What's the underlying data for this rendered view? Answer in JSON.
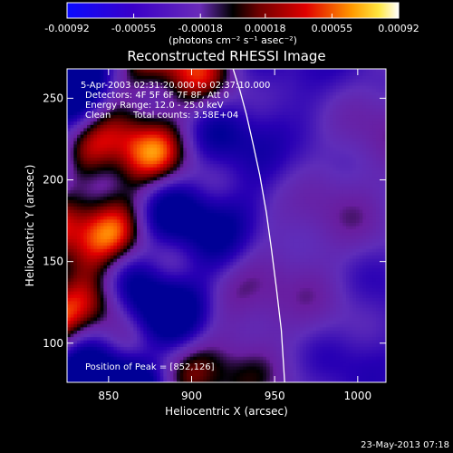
{
  "chart_data": {
    "type": "heatmap",
    "title": "Reconstructed RHESSI Image",
    "xlabel": "Heliocentric X (arcsec)",
    "ylabel": "Heliocentric Y (arcsec)",
    "xlim": [
      825,
      1017
    ],
    "ylim": [
      76,
      268
    ],
    "x_ticks": [
      850,
      900,
      950,
      1000
    ],
    "y_ticks": [
      100,
      150,
      200,
      250
    ],
    "colorbar": {
      "min": -0.00092,
      "max": 0.00092,
      "ticks": [
        -0.00092,
        -0.00055,
        -0.00018,
        0.00018,
        0.00055,
        0.00092
      ],
      "tick_labels": [
        "-0.00092",
        "-0.00055",
        "-0.00018",
        "0.00018",
        "0.00055",
        "0.00092"
      ],
      "unit_label": "(photons cm⁻² s⁻¹ asec⁻²)"
    },
    "annotations": {
      "time_range": "5-Apr-2003 02:31:20.000 to 02:37:10.000",
      "detectors": "Detectors: 4F 5F 6F 7F 8F, Att 0",
      "energy_range": "Energy Range: 12.0 - 25.0 keV",
      "method": "Clean",
      "total_counts": "Total counts: 3.58E+04",
      "peak_label": "Position of Peak = [852,126]"
    },
    "peak_position": [
      852,
      126
    ],
    "limb_curve": {
      "x": [
        925,
        929,
        933,
        937,
        941,
        945,
        948,
        951,
        954,
        956
      ],
      "y": [
        268,
        255,
        240,
        222,
        203,
        180,
        158,
        134,
        108,
        76
      ]
    },
    "timestamp": "23-May-2013 07:18"
  }
}
